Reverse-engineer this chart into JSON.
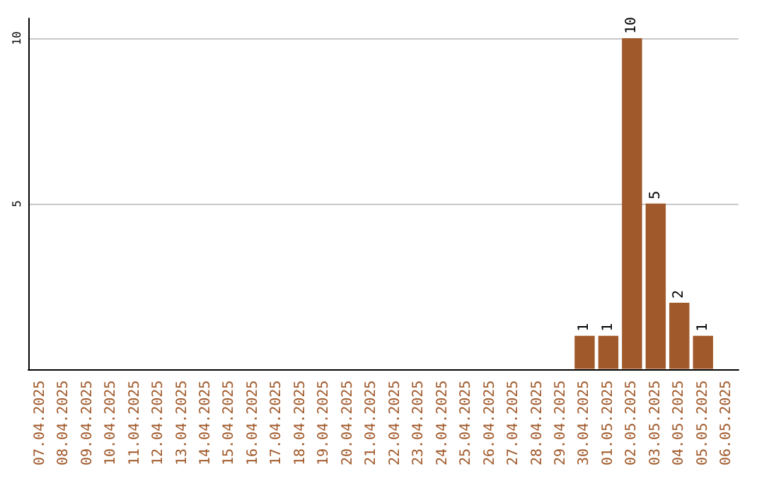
{
  "chart_data": {
    "type": "bar",
    "categories": [
      "07.04.2025",
      "08.04.2025",
      "09.04.2025",
      "10.04.2025",
      "11.04.2025",
      "12.04.2025",
      "13.04.2025",
      "14.04.2025",
      "15.04.2025",
      "16.04.2025",
      "17.04.2025",
      "18.04.2025",
      "19.04.2025",
      "20.04.2025",
      "21.04.2025",
      "22.04.2025",
      "23.04.2025",
      "24.04.2025",
      "25.04.2025",
      "26.04.2025",
      "27.04.2025",
      "28.04.2025",
      "29.04.2025",
      "30.04.2025",
      "01.05.2025",
      "02.05.2025",
      "03.05.2025",
      "04.05.2025",
      "05.05.2025",
      "06.05.2025"
    ],
    "values": [
      0,
      0,
      0,
      0,
      0,
      0,
      0,
      0,
      0,
      0,
      0,
      0,
      0,
      0,
      0,
      0,
      0,
      0,
      0,
      0,
      0,
      0,
      0,
      1,
      1,
      10,
      5,
      2,
      1,
      0
    ],
    "value_labels": [
      null,
      null,
      null,
      null,
      null,
      null,
      null,
      null,
      null,
      null,
      null,
      null,
      null,
      null,
      null,
      null,
      null,
      null,
      null,
      null,
      null,
      null,
      null,
      "1",
      "1",
      "10",
      "5",
      "2",
      "1",
      null
    ],
    "color": "#a0592a",
    "ylim": [
      0,
      10.6
    ],
    "yticks": [
      5,
      10
    ],
    "grid": "y"
  }
}
